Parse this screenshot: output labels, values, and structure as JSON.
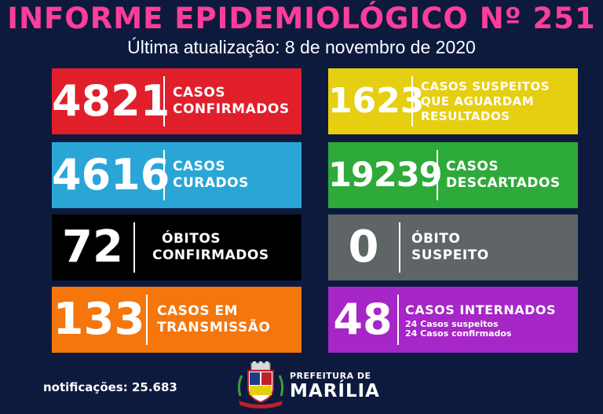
{
  "header": {
    "title": "INFORME EPIDEMIOLÓGICO Nº 251",
    "subtitle": "Última atualização: 8 de novembro de 2020"
  },
  "cards": [
    {
      "value": "4821",
      "lines": [
        "CASOS",
        "CONFIRMADOS"
      ],
      "color": "#e01f2b"
    },
    {
      "value": "1623",
      "lines": [
        "CASOS SUSPEITOS",
        "QUE AGUARDAM",
        "RESULTADOS"
      ],
      "color": "#e6cf10"
    },
    {
      "value": "4616",
      "lines": [
        "CASOS",
        "CURADOS"
      ],
      "color": "#2aa6d6"
    },
    {
      "value": "19239",
      "lines": [
        "CASOS",
        "DESCARTADOS"
      ],
      "color": "#2eaa3a"
    },
    {
      "value": "72",
      "lines": [
        "ÓBITOS",
        "CONFIRMADOS"
      ],
      "color": "#000000"
    },
    {
      "value": "0",
      "lines": [
        "ÓBITO",
        "SUSPEITO"
      ],
      "color": "#5f6466"
    },
    {
      "value": "133",
      "lines": [
        "CASOS EM",
        "TRANSMISSÃO"
      ],
      "color": "#f5760c"
    },
    {
      "value": "48",
      "lines": [
        "CASOS INTERNADOS"
      ],
      "details": [
        "24 Casos suspeitos",
        "24 Casos confirmados"
      ],
      "color": "#a626c7"
    }
  ],
  "footer": {
    "notifications": "notificações: 25.683",
    "prefeitura_line1": "PREFEITURA DE",
    "prefeitura_line2": "MARÍLIA"
  },
  "colors": {
    "background": "#0d1a3e",
    "title": "#ff3d9a"
  }
}
